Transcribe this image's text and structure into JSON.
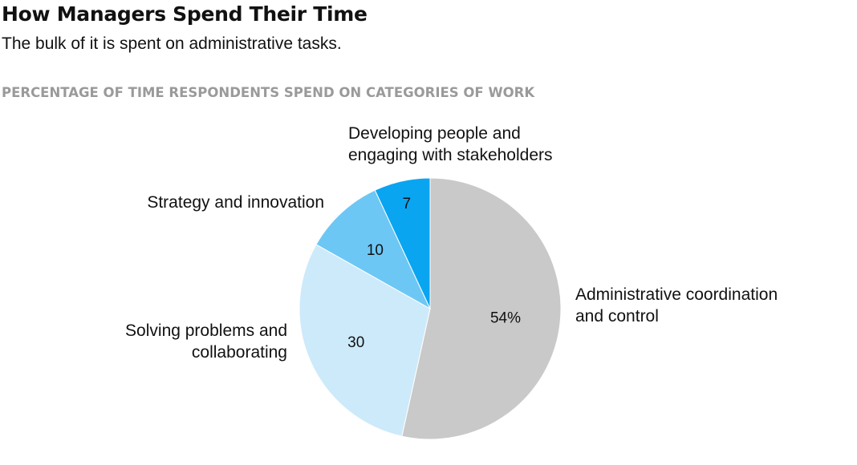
{
  "header": {
    "title": "How Managers Spend Their Time",
    "subtitle": "The bulk of it is spent on administrative tasks.",
    "section_label": "PERCENTAGE OF TIME RESPONDENTS SPEND ON CATEGORIES OF WORK"
  },
  "chart_data": {
    "type": "pie",
    "title": "How Managers Spend Their Time",
    "subtitle": "The bulk of it is spent on administrative tasks.",
    "slices": [
      {
        "label_lines": [
          "Administrative coordination",
          "and control"
        ],
        "value": 54,
        "value_label": "54%",
        "color": "#c9c9c9"
      },
      {
        "label_lines": [
          "Solving problems and",
          "collaborating"
        ],
        "value": 30,
        "value_label": "30",
        "color": "#cdeafa"
      },
      {
        "label_lines": [
          "Strategy and innovation"
        ],
        "value": 10,
        "value_label": "10",
        "color": "#6dc7f5"
      },
      {
        "label_lines": [
          "Developing people and",
          "engaging with stakeholders"
        ],
        "value": 7,
        "value_label": "7",
        "color": "#0aa5f0"
      }
    ],
    "start_angle": "12 o'clock",
    "direction": "clockwise",
    "legend": "none"
  }
}
